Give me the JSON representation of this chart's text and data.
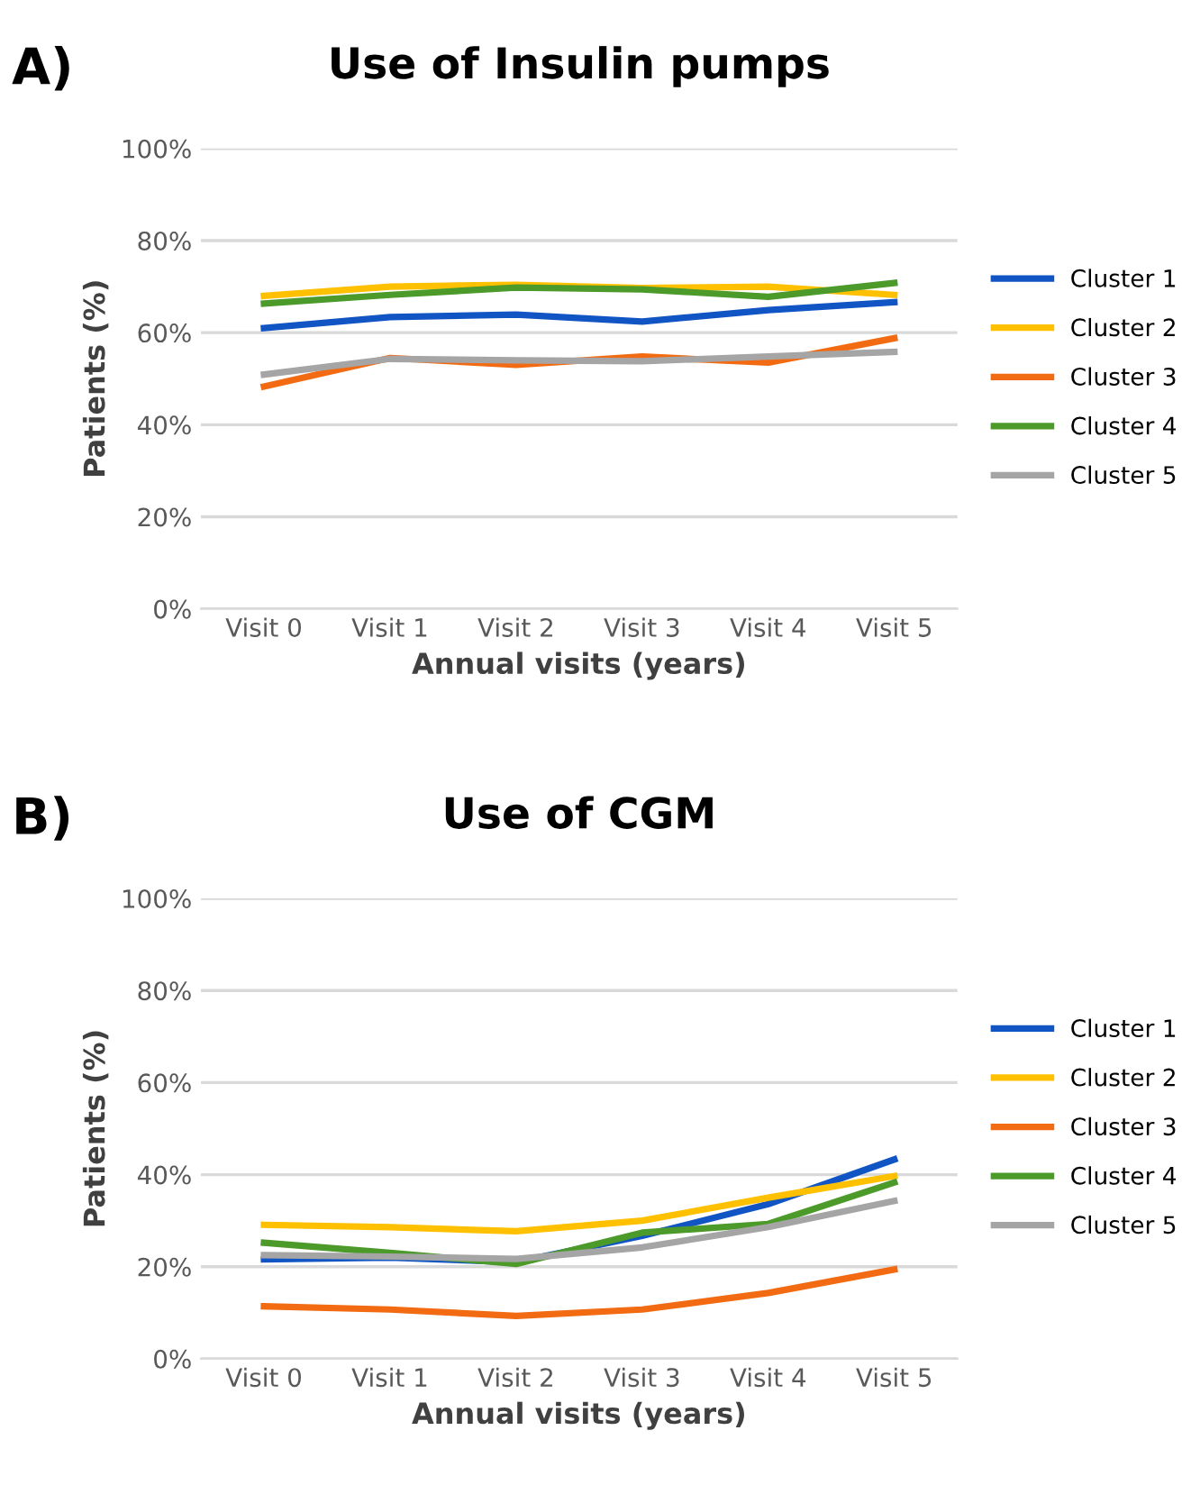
{
  "chart_data": [
    {
      "type": "line",
      "title": "Use of Insulin pumps",
      "xlabel": "Annual visits (years)",
      "ylabel": "Patients (%)",
      "annotations": [
        "A)"
      ],
      "categories": [
        "Visit 0",
        "Visit 1",
        "Visit 2",
        "Visit 3",
        "Visit 4",
        "Visit 5"
      ],
      "ylim": [
        0,
        100
      ],
      "yticks": [
        {
          "value": 0,
          "label": "0%"
        },
        {
          "value": 20,
          "label": "20%"
        },
        {
          "value": 40,
          "label": "40%"
        },
        {
          "value": 60,
          "label": "60%"
        },
        {
          "value": 80,
          "label": "80%"
        },
        {
          "value": 100,
          "label": "100%"
        }
      ],
      "grid": "y",
      "legend": "right",
      "marker": "none",
      "line_style": "solid",
      "series": [
        {
          "name": "Cluster 1",
          "color": "#1155c4",
          "values": [
            61,
            63.4,
            63.9,
            62.4,
            64.9,
            66.6
          ]
        },
        {
          "name": "Cluster 2",
          "color": "#ffc000",
          "values": [
            68,
            70,
            70.4,
            69.7,
            70,
            68.2
          ]
        },
        {
          "name": "Cluster 3",
          "color": "#f26b12",
          "values": [
            48.3,
            54.5,
            53,
            54.8,
            53.5,
            58.8
          ]
        },
        {
          "name": "Cluster 4",
          "color": "#4c9a2a",
          "values": [
            66.3,
            68.2,
            69.8,
            69.4,
            67.8,
            70.8
          ]
        },
        {
          "name": "Cluster 5",
          "color": "#a5a5a5",
          "values": [
            50.9,
            54.3,
            54,
            53.8,
            54.8,
            55.8
          ]
        }
      ]
    },
    {
      "type": "line",
      "title": "Use of CGM",
      "xlabel": "Annual visits (years)",
      "ylabel": "Patients (%)",
      "annotations": [
        "B)"
      ],
      "categories": [
        "Visit 0",
        "Visit 1",
        "Visit 2",
        "Visit 3",
        "Visit 4",
        "Visit 5"
      ],
      "ylim": [
        0,
        100
      ],
      "yticks": [
        {
          "value": 0,
          "label": "0%"
        },
        {
          "value": 20,
          "label": "20%"
        },
        {
          "value": 40,
          "label": "40%"
        },
        {
          "value": 60,
          "label": "60%"
        },
        {
          "value": 80,
          "label": "80%"
        },
        {
          "value": 100,
          "label": "100%"
        }
      ],
      "grid": "y",
      "legend": "right",
      "marker": "none",
      "line_style": "solid",
      "series": [
        {
          "name": "Cluster 1",
          "color": "#1155c4",
          "values": [
            21.6,
            22,
            21,
            26.7,
            33.6,
            43.3
          ]
        },
        {
          "name": "Cluster 2",
          "color": "#ffc000",
          "values": [
            29.1,
            28.6,
            27.7,
            30,
            35,
            39.7
          ]
        },
        {
          "name": "Cluster 3",
          "color": "#f26b12",
          "values": [
            11.4,
            10.7,
            9.3,
            10.7,
            14.3,
            19.4
          ]
        },
        {
          "name": "Cluster 4",
          "color": "#4c9a2a",
          "values": [
            25.2,
            23,
            20.6,
            27.4,
            29.3,
            38.3
          ]
        },
        {
          "name": "Cluster 5",
          "color": "#a5a5a5",
          "values": [
            22.5,
            22.2,
            21.7,
            24.2,
            28.6,
            34.3
          ]
        }
      ]
    }
  ]
}
